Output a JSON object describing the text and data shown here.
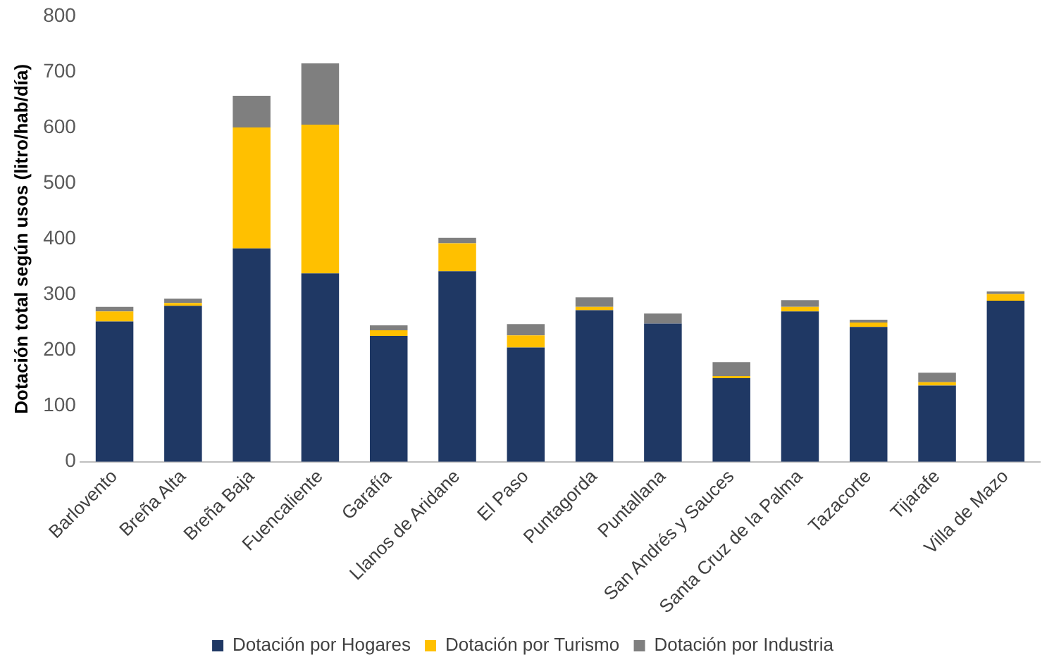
{
  "chart_data": {
    "type": "bar",
    "stacked": true,
    "ylabel": "Dotación total según usos (litro/hab/día)",
    "categories": [
      "Barlovento",
      "Breña Alta",
      "Breña Baja",
      "Fuencaliente",
      "Garafía",
      "Llanos de Aridane",
      "El Paso",
      "Puntagorda",
      "Puntallana",
      "San Andrés y Sauces",
      "Santa Cruz de la Palma",
      "Tazacorte",
      "Tijarafe",
      "Villa de Mazo"
    ],
    "series": [
      {
        "name": "Dotación por Hogares",
        "color": "#1f3864",
        "values": [
          252,
          280,
          383,
          338,
          226,
          342,
          205,
          272,
          248,
          150,
          270,
          242,
          137,
          289
        ]
      },
      {
        "name": "Dotación por Turismo",
        "color": "#ffc000",
        "values": [
          18,
          5,
          217,
          267,
          10,
          50,
          22,
          6,
          0,
          4,
          8,
          8,
          6,
          12
        ]
      },
      {
        "name": "Dotación por Industria",
        "color": "#7f7f7f",
        "values": [
          8,
          8,
          57,
          110,
          9,
          10,
          20,
          17,
          18,
          25,
          12,
          5,
          17,
          5
        ]
      }
    ],
    "ylim": [
      0,
      800
    ],
    "yticks": [
      0,
      100,
      200,
      300,
      400,
      500,
      600,
      700,
      800
    ],
    "grid": false,
    "legend": "bottom"
  }
}
